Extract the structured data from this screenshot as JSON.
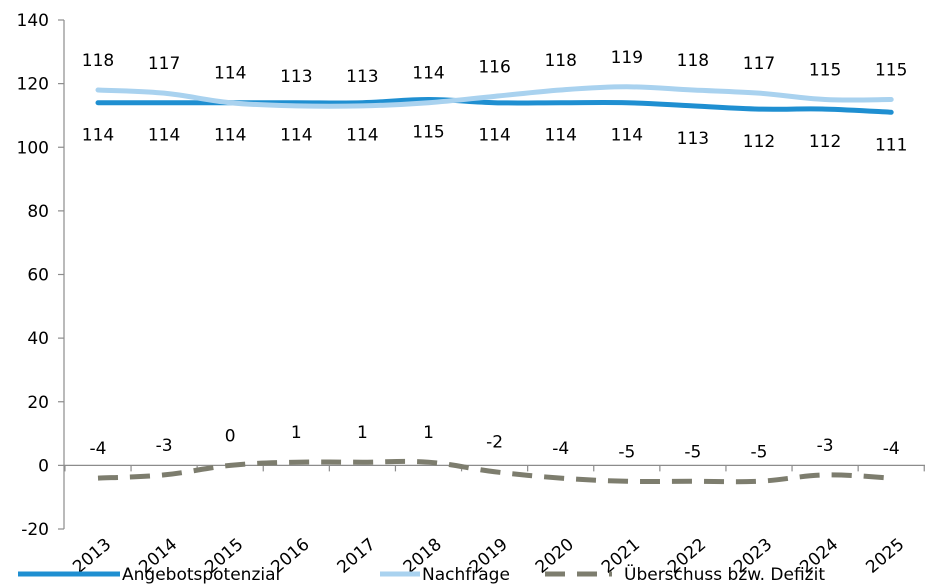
{
  "chart_data": {
    "type": "line",
    "categories": [
      "2013",
      "2014",
      "2015",
      "2016",
      "2017",
      "2018",
      "2019",
      "2020",
      "2021",
      "2022",
      "2023",
      "2024",
      "2025"
    ],
    "ylim": [
      -20,
      140
    ],
    "yticks": [
      -20,
      0,
      20,
      40,
      60,
      80,
      100,
      120,
      140
    ],
    "grid": false,
    "legend_position": "bottom",
    "series": [
      {
        "name": "Angebotspotenzial",
        "values": [
          114,
          114,
          114,
          114,
          114,
          115,
          114,
          114,
          114,
          113,
          112,
          112,
          111
        ],
        "color": "#1f8fd1",
        "style": "solid",
        "label_position": "below"
      },
      {
        "name": "Nachfrage",
        "values": [
          118,
          117,
          114,
          113,
          113,
          114,
          116,
          118,
          119,
          118,
          117,
          115,
          115
        ],
        "color": "#a9d2ef",
        "style": "solid",
        "label_position": "above"
      },
      {
        "name": "Überschuss bzw. Defizit",
        "values": [
          -4,
          -3,
          0,
          1,
          1,
          1,
          -2,
          -4,
          -5,
          -5,
          -5,
          -3,
          -4
        ],
        "color": "#7d7d6e",
        "style": "dashed",
        "label_position": "above"
      }
    ]
  }
}
